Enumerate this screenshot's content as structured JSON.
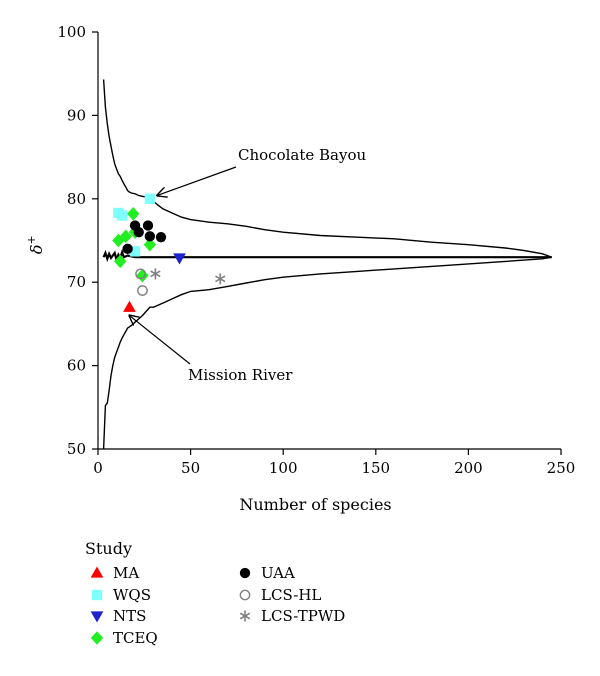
{
  "chart_data": {
    "type": "scatter",
    "xlabel": "Number of species",
    "ylabel": "δ",
    "ylabel_superscript": "+",
    "xlim": [
      0,
      250
    ],
    "ylim": [
      50,
      100
    ],
    "xticks": [
      "0",
      "50",
      "100",
      "150",
      "200",
      "250"
    ],
    "yticks": [
      "50",
      "60",
      "70",
      "80",
      "90",
      "100"
    ],
    "mean_line": 73,
    "funnel_upper": [
      [
        3,
        94.3
      ],
      [
        4,
        91
      ],
      [
        5,
        89
      ],
      [
        6,
        87.5
      ],
      [
        7,
        86.3
      ],
      [
        8,
        85.2
      ],
      [
        9,
        84.2
      ],
      [
        10,
        83.6
      ],
      [
        11,
        83
      ],
      [
        12,
        82.7
      ],
      [
        13,
        82.2
      ],
      [
        14,
        81.8
      ],
      [
        15,
        81.4
      ],
      [
        16,
        81
      ],
      [
        17,
        80.8
      ],
      [
        18,
        80.7
      ],
      [
        20,
        80.6
      ],
      [
        22,
        80.4
      ],
      [
        24,
        80.3
      ],
      [
        26,
        80.2
      ],
      [
        28,
        80
      ],
      [
        30,
        79.7
      ],
      [
        32,
        79.3
      ],
      [
        35,
        78.8
      ],
      [
        40,
        78.3
      ],
      [
        45,
        77.8
      ],
      [
        50,
        77.5
      ],
      [
        60,
        77.2
      ],
      [
        70,
        77
      ],
      [
        80,
        76.7
      ],
      [
        90,
        76.3
      ],
      [
        100,
        76
      ],
      [
        120,
        75.6
      ],
      [
        140,
        75.4
      ],
      [
        160,
        75.2
      ],
      [
        180,
        74.8
      ],
      [
        200,
        74.5
      ],
      [
        220,
        74.1
      ],
      [
        230,
        73.8
      ],
      [
        240,
        73.4
      ],
      [
        245,
        73
      ]
    ],
    "funnel_lower": [
      [
        3,
        50
      ],
      [
        4,
        55.2
      ],
      [
        5,
        55.5
      ],
      [
        6,
        57
      ],
      [
        7,
        58.8
      ],
      [
        8,
        60
      ],
      [
        9,
        61
      ],
      [
        10,
        61.6
      ],
      [
        11,
        62.2
      ],
      [
        12,
        62.8
      ],
      [
        13,
        63.3
      ],
      [
        14,
        63.7
      ],
      [
        15,
        64.1
      ],
      [
        16,
        64.5
      ],
      [
        18,
        64.8
      ],
      [
        20,
        65.2
      ],
      [
        22,
        65.6
      ],
      [
        24,
        66
      ],
      [
        26,
        66.5
      ],
      [
        28,
        67
      ],
      [
        30,
        67
      ],
      [
        35,
        67.5
      ],
      [
        40,
        68
      ],
      [
        45,
        68.5
      ],
      [
        50,
        68.9
      ],
      [
        60,
        69.1
      ],
      [
        70,
        69.5
      ],
      [
        80,
        69.9
      ],
      [
        90,
        70.3
      ],
      [
        100,
        70.6
      ],
      [
        120,
        71
      ],
      [
        140,
        71.3
      ],
      [
        160,
        71.6
      ],
      [
        180,
        71.9
      ],
      [
        200,
        72.2
      ],
      [
        220,
        72.5
      ],
      [
        240,
        72.8
      ],
      [
        245,
        73
      ]
    ],
    "mean_jitter": [
      [
        3,
        73
      ],
      [
        4,
        73.5
      ],
      [
        5,
        72.8
      ],
      [
        6,
        73.4
      ],
      [
        7,
        72.9
      ],
      [
        8,
        73.2
      ],
      [
        9,
        73.5
      ],
      [
        10,
        72.7
      ],
      [
        11,
        73.3
      ],
      [
        12,
        72.9
      ],
      [
        13,
        73.6
      ],
      [
        14,
        73
      ],
      [
        16,
        73.2
      ],
      [
        20,
        73
      ]
    ],
    "series": [
      {
        "name": "MA",
        "marker": "triangle-up",
        "color": "#ff0000",
        "filled": true,
        "points": [
          [
            17,
            67
          ]
        ]
      },
      {
        "name": "WQS",
        "marker": "square",
        "color": "#80ffff",
        "filled": true,
        "points": [
          [
            11,
            78.3
          ],
          [
            13,
            78
          ],
          [
            20,
            73.7
          ],
          [
            28,
            80
          ]
        ]
      },
      {
        "name": "NTS",
        "marker": "triangle-down",
        "color": "#1f22cf",
        "filled": true,
        "points": [
          [
            44,
            72.9
          ]
        ]
      },
      {
        "name": "TCEQ",
        "marker": "diamond",
        "color": "#22ee22",
        "filled": true,
        "points": [
          [
            11,
            75
          ],
          [
            12,
            72.5
          ],
          [
            15,
            75.5
          ],
          [
            19,
            78.2
          ],
          [
            20,
            76
          ],
          [
            24,
            70.8
          ],
          [
            28,
            74.5
          ]
        ]
      },
      {
        "name": "UAA",
        "marker": "circle",
        "color": "#000000",
        "filled": true,
        "points": [
          [
            16,
            74
          ],
          [
            20,
            76.8
          ],
          [
            22,
            76
          ],
          [
            27,
            76.8
          ],
          [
            28,
            75.5
          ],
          [
            34,
            75.4
          ]
        ]
      },
      {
        "name": "LCS-HL",
        "marker": "circle",
        "color": "#808080",
        "filled": false,
        "points": [
          [
            23,
            71
          ],
          [
            24,
            69
          ]
        ]
      },
      {
        "name": "LCS-TPWD",
        "marker": "asterisk",
        "color": "#808080",
        "filled": false,
        "points": [
          [
            31,
            71
          ],
          [
            66,
            70.4
          ]
        ]
      }
    ],
    "annotations": [
      {
        "text": "Chocolate Bayou",
        "target": [
          32,
          80.4
        ]
      },
      {
        "text": "Mission River",
        "target": [
          17,
          66
        ]
      }
    ],
    "legend": {
      "title": "Study",
      "placement": "bottom-left"
    }
  }
}
